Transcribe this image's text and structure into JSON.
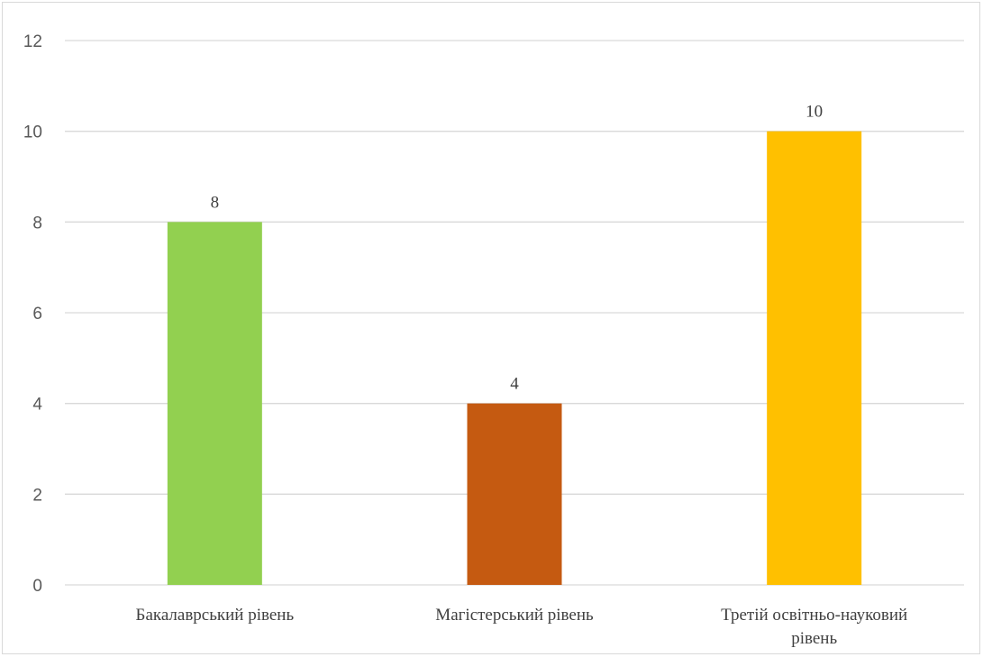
{
  "chart_data": {
    "type": "bar",
    "title": "",
    "xlabel": "",
    "ylabel": "",
    "categories": [
      [
        "Бакалаврський рівень"
      ],
      [
        "Магістерський рівень"
      ],
      [
        "Третій освітньо-науковий",
        "рівень"
      ]
    ],
    "values": [
      8,
      4,
      10
    ],
    "data_labels": [
      "8",
      "4",
      "10"
    ],
    "colors": [
      "#92d050",
      "#c55a11",
      "#ffc000"
    ],
    "ylim": [
      0,
      12
    ],
    "yticks": [
      0,
      2,
      4,
      6,
      8,
      10,
      12
    ],
    "grid": true,
    "legend": "none"
  }
}
